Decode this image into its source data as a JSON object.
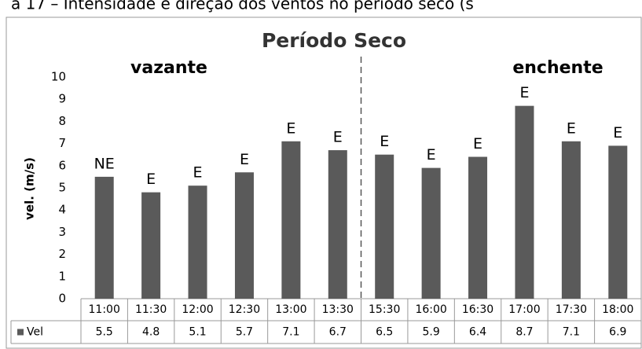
{
  "caption": "a 17 – Intensidade e direção dos ventos no período seco (s",
  "chart_data": {
    "type": "bar",
    "title": "Período Seco",
    "ylabel": "vel. (m/s)",
    "annotations": [
      "vazante",
      "enchente"
    ],
    "categories": [
      "11:00",
      "11:30",
      "12:00",
      "12:30",
      "13:00",
      "13:30",
      "15:30",
      "16:00",
      "16:30",
      "17:00",
      "17:30",
      "18:00"
    ],
    "series": [
      {
        "name": "Vel",
        "color": "#5a5a5a",
        "values": [
          5.5,
          4.8,
          5.1,
          5.7,
          7.1,
          6.7,
          6.5,
          5.9,
          6.4,
          8.7,
          7.1,
          6.9
        ]
      }
    ],
    "directions": [
      "NE",
      "E",
      "E",
      "E",
      "E",
      "E",
      "E",
      "E",
      "E",
      "E",
      "E",
      "E"
    ],
    "ylim": [
      0,
      10
    ],
    "yticks": [
      0,
      1,
      2,
      3,
      4,
      5,
      6,
      7,
      8,
      9,
      10
    ],
    "grid": false
  }
}
